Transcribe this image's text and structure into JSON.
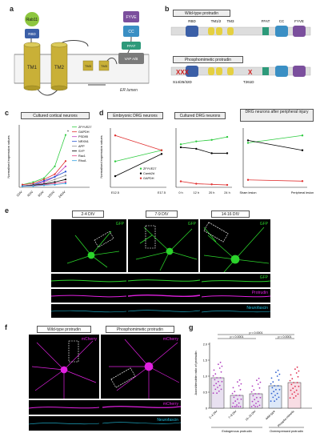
{
  "panel_labels": {
    "a": "a",
    "b": "b",
    "c": "c",
    "d": "d",
    "e": "e",
    "f": "f",
    "g": "g"
  },
  "panel_a": {
    "domains": {
      "rab11": "Rab11",
      "rbd": "RBD",
      "tm1": "TM1",
      "tm2": "TM2",
      "tm3a": "TM3",
      "tm3b": "TM3",
      "fyve": "FYVE",
      "cc": "CC",
      "ffat": "FFAT",
      "vap": "VAP A/B"
    },
    "er_label": "ER lumen",
    "colors": {
      "rab11": "#8dc63f",
      "rbd": "#3b5fa7",
      "tm": "#c9b037",
      "fyve": "#7b4f9d",
      "cc": "#3a8fc4",
      "ffat": "#2d9a7a",
      "vap": "#7a7a7a"
    }
  },
  "panel_b": {
    "wt_title": "Wild-type protrudin",
    "pm_title": "Phosphomimetic protrudin",
    "labels": {
      "rbd": "RBD",
      "tm12": "TM1/2",
      "tm3": "TM3",
      "ffat": "FFAT",
      "cc": "CC",
      "fyve": "FYVE"
    },
    "mut1": "S14/25/32D",
    "mut2": "T261D",
    "marks": "XXX",
    "mark": "X"
  },
  "panel_c": {
    "title": "Cultured cortical neurons",
    "legend": [
      "ZFYVE27",
      "GAPDH",
      "PSD95",
      "NRXN1",
      "APP",
      "SYP",
      "Rac1",
      "RhoA"
    ],
    "colors": [
      "#2ecc40",
      "#e03030",
      "#c040c0",
      "#2050d0",
      "#909090",
      "#000000",
      "#e04080",
      "#30a0e0"
    ],
    "xlabels": [
      "1DIV",
      "4DIV",
      "8DIV",
      "10DIV",
      "24DIV"
    ],
    "ylabel": "Normalised expression values",
    "sig": "*"
  },
  "chart_data": [
    {
      "type": "line",
      "title": "Cultured cortical neurons",
      "categories": [
        "1DIV",
        "4DIV",
        "8DIV",
        "10DIV",
        "24DIV"
      ],
      "ylabel": "Normalised expression values",
      "series": [
        {
          "name": "ZFYVE27",
          "values": [
            0.1,
            0.2,
            0.35,
            0.8,
            2.0
          ]
        },
        {
          "name": "GAPDH",
          "values": [
            0.1,
            0.15,
            0.3,
            0.5,
            1.0
          ]
        },
        {
          "name": "PSD95",
          "values": [
            0.05,
            0.1,
            0.2,
            0.4,
            0.8
          ]
        },
        {
          "name": "NRXN1",
          "values": [
            0.05,
            0.1,
            0.25,
            0.4,
            0.6
          ]
        },
        {
          "name": "APP",
          "values": [
            0.05,
            0.1,
            0.15,
            0.3,
            0.45
          ]
        },
        {
          "name": "SYP",
          "values": [
            0.05,
            0.08,
            0.12,
            0.2,
            0.3
          ]
        },
        {
          "name": "Rac1",
          "values": [
            0.05,
            0.06,
            0.1,
            0.15,
            0.2
          ]
        },
        {
          "name": "RhoA",
          "values": [
            0.04,
            0.05,
            0.08,
            0.1,
            0.15
          ]
        }
      ]
    },
    {
      "type": "line",
      "title": "Embryonic DRG neurons",
      "categories": [
        "E12.5",
        "E17.5"
      ],
      "ylabel": "Normalised expression values",
      "series": [
        {
          "name": "ZFYVE27",
          "values": [
            700,
            1000
          ]
        },
        {
          "name": "Camk2d",
          "values": [
            300,
            900
          ]
        },
        {
          "name": "GAPDH",
          "values": [
            1400,
            1000
          ]
        }
      ]
    },
    {
      "type": "line",
      "title": "Cultured DRG neurons",
      "categories": [
        "0 h",
        "12 h",
        "20 h",
        "24 h"
      ],
      "series": [
        {
          "values": [
            1450,
            1550,
            1600,
            1700
          ]
        },
        {
          "values": [
            1350,
            1300,
            1150,
            1150
          ]
        },
        {
          "values": [
            200,
            120,
            100,
            80
          ]
        }
      ]
    },
    {
      "type": "line",
      "title": "DRG neurons after peripheral injury",
      "categories": [
        "Sham lesion",
        "Peripheral lesion"
      ],
      "series": [
        {
          "values": [
            1800,
            2100
          ]
        },
        {
          "values": [
            1900,
            1500
          ]
        },
        {
          "values": [
            300,
            250
          ]
        }
      ]
    },
    {
      "type": "bar",
      "categories": [
        "2–4 DIV",
        "7–9 DIV",
        "14–16 DIV",
        "Wild-type",
        "Phospho-mimetic"
      ],
      "values": [
        0.95,
        0.4,
        0.45,
        0.7,
        0.8
      ],
      "ylabel": "Axon/dendrite ratio of protrudin",
      "group_labels": [
        "Endogenous protrudin",
        "Overexpressed protrudin"
      ],
      "p_values": [
        "p < 0.0001",
        "p < 0.0001",
        "p < 0.0001"
      ]
    }
  ],
  "panel_d": {
    "title1": "Embryonic DRG neurons",
    "title2": "Cultured DRG neurons",
    "title3": "DRG neurons after peripheral injury",
    "legend": [
      "ZFYVE27",
      "Camk2d",
      "GAPDH"
    ],
    "xlabels1": [
      "E12.5",
      "E17.5"
    ],
    "xlabels2": [
      "0 h",
      "12 h",
      "20 h",
      "24 h"
    ],
    "xlabels3": [
      "Sham lesion",
      "Peripheral lesion"
    ],
    "ylabel": "Normalised expression values"
  },
  "panel_e": {
    "titles": [
      "2-4 DIV",
      "7-9 DIV",
      "14-16 DIV"
    ],
    "gfp": "GFP",
    "protrudin": "Protrudin",
    "neurofascin": "Neurofascin"
  },
  "panel_f": {
    "titles": [
      "Wild-type protrudin",
      "Phosphomimetic protrudin"
    ],
    "mcherry": "mCherry",
    "neurofascin": "Neurofascin"
  },
  "panel_g": {
    "ylabel": "Axon/dendrite ratio of protrudin",
    "categories": [
      "2–4 DIV",
      "7–9 DIV",
      "14–16 DIV",
      "Wild-type",
      "Phospho-mimetic"
    ],
    "groups": [
      "Endogenous protrudin",
      "Overexpressed protrudin"
    ],
    "pvals": [
      "p < 0.0001",
      "p < 0.0001",
      "p < 0.0001"
    ],
    "yticks": [
      "0",
      "0.5",
      "1.0",
      "1.5",
      "2.0"
    ]
  }
}
